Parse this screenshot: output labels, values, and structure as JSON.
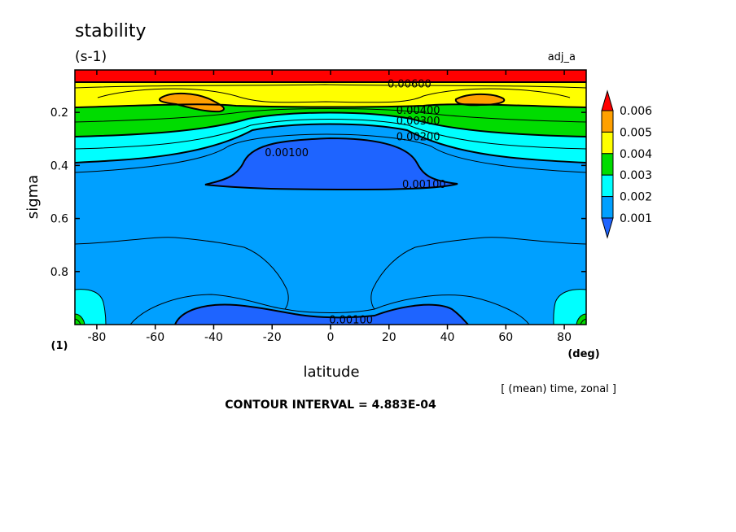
{
  "header": {
    "title": "stability",
    "units": "(s-1)",
    "run_label": "adj_a"
  },
  "footer": {
    "contour_interval": "CONTOUR INTERVAL = 4.883E-04",
    "averaging_note": "[ (mean) time, zonal ]"
  },
  "chart_data": {
    "type": "heatmap",
    "title": "stability",
    "subtitle": "(s-1)",
    "xlabel": "latitude",
    "x_units": "(deg)",
    "ylabel": "sigma",
    "y_units": "(1)",
    "xlim": [
      -87.5,
      87.5
    ],
    "ylim": [
      1.0,
      0.04
    ],
    "y_inverted": true,
    "x_ticks": [
      -80,
      -60,
      -40,
      -20,
      0,
      20,
      40,
      60,
      80
    ],
    "x_tick_labels": [
      "-80",
      "-60",
      "-40",
      "-20",
      "0",
      "20",
      "40",
      "60",
      "80"
    ],
    "y_ticks": [
      0.2,
      0.4,
      0.6,
      0.8
    ],
    "y_tick_labels": [
      "0.2",
      "0.4",
      "0.6",
      "0.8"
    ],
    "contour_labels": [
      {
        "text": "0.00600",
        "lat": 27,
        "sigma": 0.09
      },
      {
        "text": "0.00400",
        "lat": 30,
        "sigma": 0.19
      },
      {
        "text": "0.00300",
        "lat": 30,
        "sigma": 0.23
      },
      {
        "text": "0.00200",
        "lat": 30,
        "sigma": 0.29
      },
      {
        "text": "0.00100",
        "lat": -15,
        "sigma": 0.35
      },
      {
        "text": "0.00100",
        "lat": 32,
        "sigma": 0.47
      },
      {
        "text": "0.00100",
        "lat": 7,
        "sigma": 0.98
      }
    ],
    "colorbar": {
      "levels": [
        0.001,
        0.002,
        0.003,
        0.004,
        0.005,
        0.006
      ],
      "level_labels": [
        "0.001",
        "0.002",
        "0.003",
        "0.004",
        "0.005",
        "0.006"
      ],
      "colors": [
        "#1e64ff",
        "#00a0ff",
        "#00ffff",
        "#00dc00",
        "#ffff00",
        "#ffa000",
        "#ff0000"
      ],
      "extend": "both"
    },
    "fill_colors": {
      "lt_0001": "#1e64ff",
      "b0001_0002": "#00a0ff",
      "b0002_0003": "#00ffff",
      "b0003_0004": "#00dc00",
      "b0004_0005": "#ffff00",
      "b0005_0006": "#ffa000",
      "gt_0006": "#ff0000"
    }
  }
}
